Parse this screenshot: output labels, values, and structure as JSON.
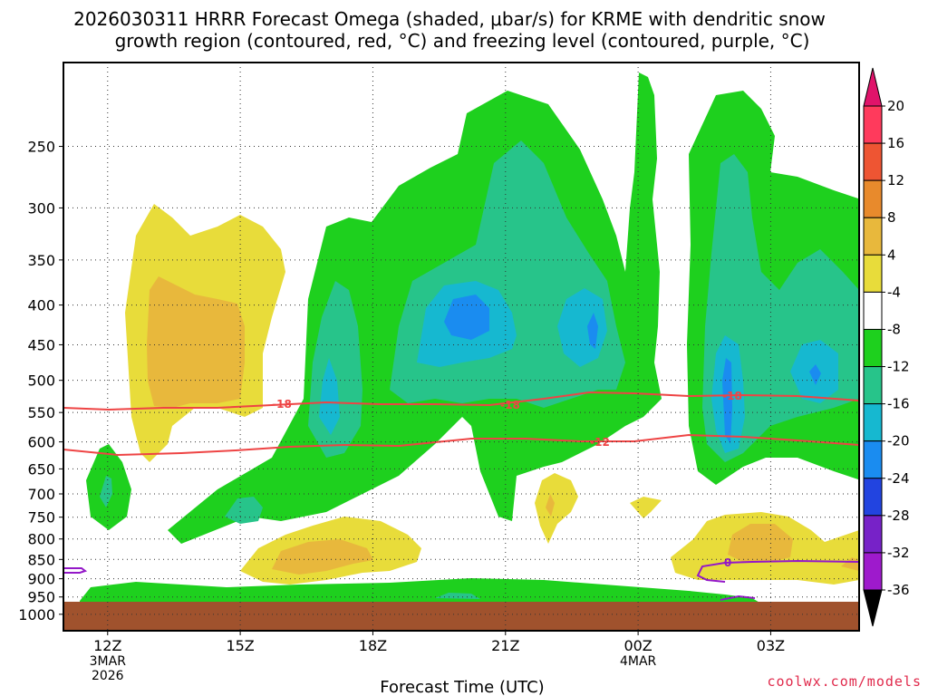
{
  "title": {
    "line1": "2026030311 HRRR Forecast Omega (shaded, μbar/s) for KRME with dendritic snow",
    "line2": "growth region (contoured, red, °C) and freezing level (contoured, purple, °C)"
  },
  "credit": "coolwx.com/models",
  "chart_data": {
    "type": "heatmap",
    "title": "2026030311 HRRR Forecast Omega (shaded, μbar/s) for KRME with dendritic snow growth region (contoured, red, °C) and freezing level (contoured, purple, °C)",
    "xlabel": "Forecast Time (UTC)",
    "ylabel": "",
    "x_ticks": [
      {
        "label": "12Z",
        "sub": [
          "3MAR",
          "2026"
        ],
        "hour": 0
      },
      {
        "label": "15Z",
        "sub": [],
        "hour": 3
      },
      {
        "label": "18Z",
        "sub": [],
        "hour": 6
      },
      {
        "label": "21Z",
        "sub": [],
        "hour": 9
      },
      {
        "label": "00Z",
        "sub": [
          "4MAR"
        ],
        "hour": 12
      },
      {
        "label": "03Z",
        "sub": [],
        "hour": 15
      }
    ],
    "xlim_hours": [
      -1,
      17
    ],
    "y_ticks": [
      "250",
      "300",
      "350",
      "400",
      "450",
      "500",
      "550",
      "600",
      "650",
      "700",
      "750",
      "800",
      "850",
      "900",
      "950",
      "1000"
    ],
    "y_scale": "log pressure (hPa), inverted",
    "ylim": [
      1050,
      195
    ],
    "grid": "dotted",
    "colorbar": {
      "levels": [
        "20",
        "16",
        "12",
        "8",
        "4",
        "-4",
        "-8",
        "-12",
        "-16",
        "-20",
        "-24",
        "-28",
        "-32",
        "-36"
      ],
      "colors": [
        "#ff3a5c",
        "#ee5533",
        "#e88a2c",
        "#e8b83c",
        "#e8dc3a",
        "#ffffff",
        "#1ed01e",
        "#27c48a",
        "#16b8d0",
        "#1a8cf0",
        "#2244e0",
        "#7722c8",
        "#9e1acc",
        "#a8a8a8"
      ],
      "top_arrow_color": "#e0136a",
      "bottom_arrow_color": "#000000"
    },
    "terrain_color": "#a0522d",
    "contours": [
      {
        "series": "dendritic snow growth region",
        "color": "#ee4444",
        "labels": [
          "-18",
          "-18",
          "-18",
          "-12"
        ]
      },
      {
        "series": "freezing level",
        "color": "#9418c8",
        "labels": [
          "0"
        ]
      }
    ],
    "annotation_units": "°C"
  }
}
